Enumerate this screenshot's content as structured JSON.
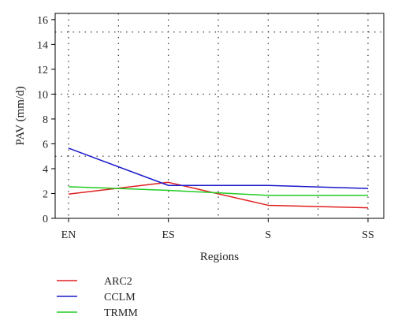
{
  "chart_data": {
    "type": "line",
    "xlabel": "Regions",
    "ylabel": "PAV (mm/d)",
    "categories": [
      "EN",
      "ES",
      "S",
      "SS"
    ],
    "ylim": [
      0,
      16.5
    ],
    "yticks": [
      0,
      2,
      4,
      6,
      8,
      10,
      12,
      14,
      16
    ],
    "grid": {
      "style": "dotted",
      "y_lines": [
        5,
        10,
        15
      ],
      "x_lines": "category positions"
    },
    "legend": {
      "placement": "below-left"
    },
    "series": [
      {
        "name": "ARC2",
        "color": "#e02020",
        "values": [
          1.95,
          2.9,
          1.05,
          0.85
        ]
      },
      {
        "name": "CCLM",
        "color": "#1a1acc",
        "values": [
          5.65,
          2.65,
          2.65,
          2.4
        ]
      },
      {
        "name": "TRMM",
        "color": "#22cc22",
        "values": [
          2.55,
          2.25,
          1.85,
          1.85
        ]
      }
    ]
  }
}
